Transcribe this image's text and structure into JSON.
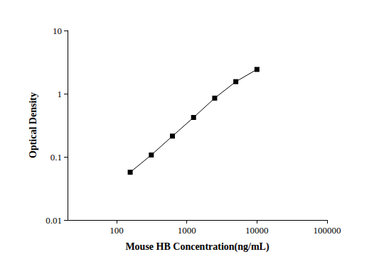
{
  "chart_data": {
    "type": "line",
    "x": [
      156.25,
      312.5,
      625,
      1250,
      2500,
      5000,
      10000
    ],
    "values": [
      0.057,
      0.107,
      0.213,
      0.42,
      0.85,
      1.55,
      2.42
    ],
    "xlabel": "Mouse HB Concentration(ng/mL)",
    "ylabel": "Optical Density",
    "xlim": [
      20,
      100000
    ],
    "xticks": [
      100,
      1000,
      10000,
      100000
    ],
    "ylim": [
      0.01,
      10
    ],
    "yticks": [
      0.01,
      0.1,
      1,
      10
    ],
    "log": true,
    "grid": false,
    "marker": "square",
    "color": "#000000"
  }
}
